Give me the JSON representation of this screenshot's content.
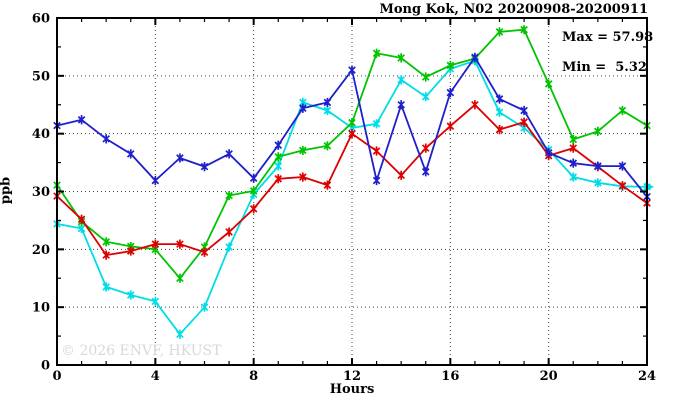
{
  "chart_data": {
    "type": "line",
    "title": "Mong Kok, N02 20200908-20200911",
    "annotation": {
      "max_label": "Max = 57.98",
      "min_label": "Min =  5.32"
    },
    "xlabel": "Hours",
    "ylabel": "ppb",
    "watermark": "© 2026 ENVF, HKUST",
    "xlim": [
      0,
      24
    ],
    "ylim": [
      0,
      60
    ],
    "x_major_ticks": [
      0,
      4,
      8,
      12,
      16,
      20,
      24
    ],
    "x_minor_step": 1,
    "y_major_ticks": [
      0,
      10,
      20,
      30,
      40,
      50,
      60
    ],
    "y_minor_step": 5,
    "grid": "dotted lines at interior major ticks, both axes",
    "legend": "none",
    "frame_color": "#000000",
    "x": [
      0,
      1,
      2,
      3,
      4,
      5,
      6,
      7,
      8,
      9,
      10,
      11,
      12,
      13,
      14,
      15,
      16,
      17,
      18,
      19,
      20,
      21,
      22,
      23,
      24
    ],
    "series": [
      {
        "name": "cyan",
        "color": "#00dde6",
        "marker": "asterisk-x",
        "arrow_end": true,
        "values": [
          24.4,
          23.6,
          13.5,
          12.1,
          11.0,
          5.32,
          10.0,
          20.4,
          29.5,
          34.4,
          45.4,
          44.0,
          41.0,
          41.7,
          49.3,
          46.4,
          51.2,
          52.6,
          43.7,
          41.0,
          37.2,
          32.5,
          31.5,
          30.9,
          30.8
        ]
      },
      {
        "name": "green",
        "color": "#00c400",
        "marker": "asterisk-x",
        "arrow_end": false,
        "values": [
          31.1,
          24.8,
          21.3,
          20.5,
          20.0,
          15.0,
          20.4,
          29.3,
          30.1,
          36.0,
          37.1,
          37.9,
          41.9,
          53.9,
          53.1,
          49.8,
          51.8,
          53.0,
          57.6,
          57.98,
          48.6,
          39.0,
          40.4,
          44.0,
          41.4
        ]
      },
      {
        "name": "red",
        "color": "#dd0000",
        "marker": "asterisk-x",
        "arrow_end": false,
        "values": [
          29.2,
          25.2,
          19.0,
          19.7,
          20.9,
          20.9,
          19.5,
          23.0,
          27.0,
          32.2,
          32.5,
          31.1,
          40.0,
          37.0,
          32.8,
          37.5,
          41.3,
          45.0,
          40.7,
          42.0,
          36.2,
          37.5,
          34.3,
          31.0,
          28.0
        ]
      },
      {
        "name": "blue",
        "color": "#1f1fcc",
        "marker": "asterisk-x",
        "arrow_end": false,
        "values": [
          41.4,
          42.4,
          39.1,
          36.5,
          31.9,
          35.8,
          34.3,
          36.5,
          32.3,
          38.0,
          44.4,
          45.4,
          51.0,
          31.9,
          45.0,
          33.4,
          47.1,
          53.2,
          46.0,
          44.0,
          36.7,
          34.9,
          34.4,
          34.4,
          29.1
        ]
      }
    ]
  }
}
